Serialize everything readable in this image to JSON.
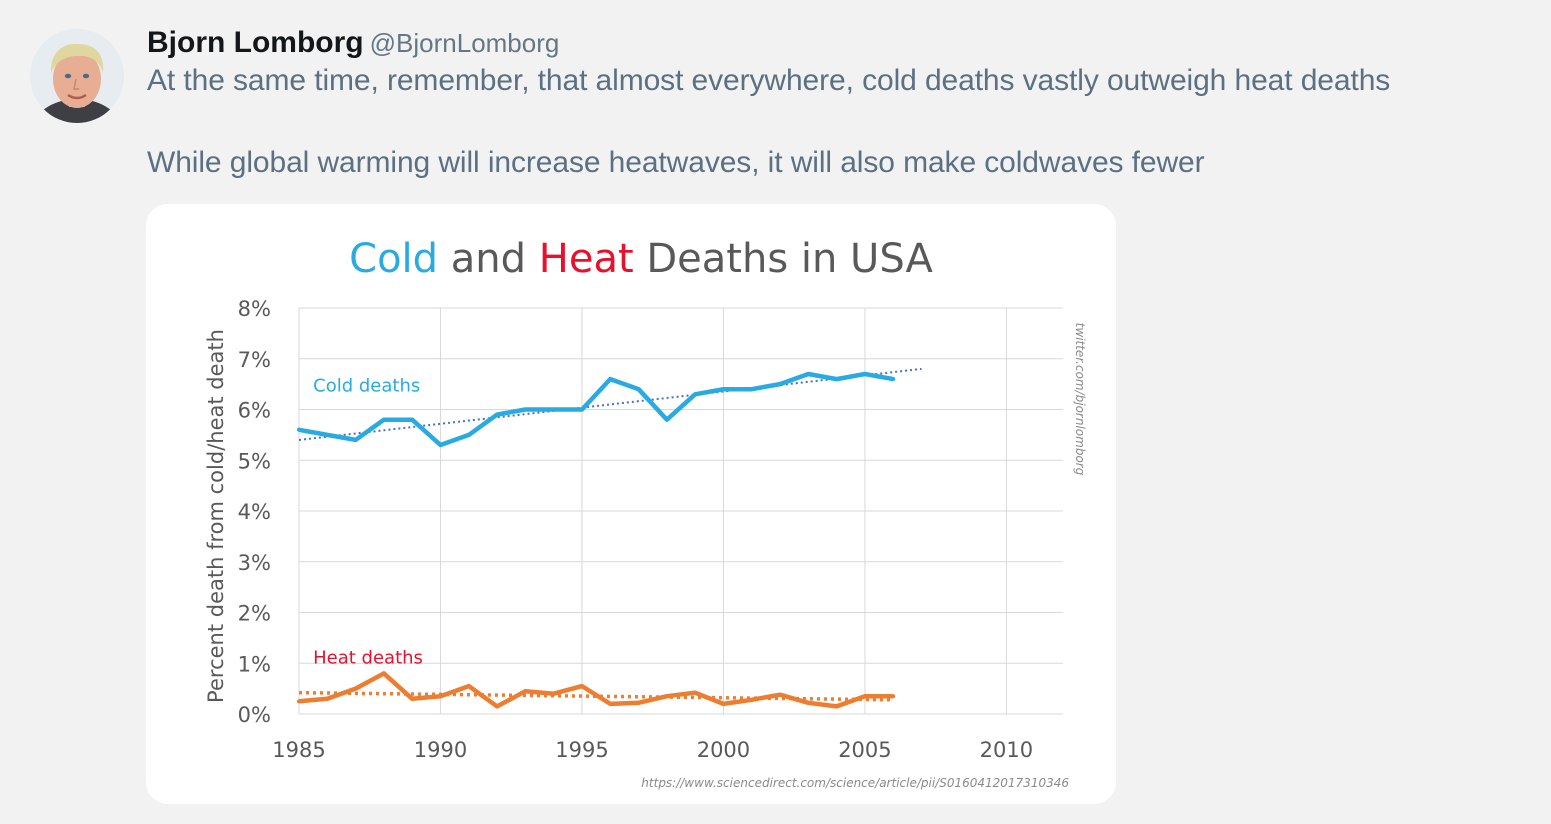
{
  "tweet": {
    "author_name": "Bjorn Lomborg",
    "author_handle": "@BjornLomborg",
    "line1": "At the same time, remember, that almost everywhere, cold deaths vastly outweigh heat deaths",
    "line2": "While global warming will increase heatwaves, it will also make coldwaves fewer"
  },
  "colors": {
    "cold": "#29abe2",
    "heat": "#ed7d31",
    "heat_label": "#e8112d",
    "title_dark": "#595959",
    "grid": "#d9d9d9",
    "trend_cold": "#4472c4"
  },
  "chart_data": {
    "type": "line",
    "title_parts": [
      {
        "text": "Cold",
        "color_key": "cold"
      },
      {
        "text": " and ",
        "color_key": "title_dark"
      },
      {
        "text": "Heat",
        "color_key": "heat_label"
      },
      {
        "text": " Deaths in USA",
        "color_key": "title_dark"
      }
    ],
    "ylabel": "Percent death from cold/heat death",
    "xlabel": "",
    "xlim": [
      1985,
      2012
    ],
    "ylim": [
      0,
      8
    ],
    "x_ticks": [
      1985,
      1990,
      1995,
      2000,
      2005,
      2010
    ],
    "y_ticks": [
      0,
      1,
      2,
      3,
      4,
      5,
      6,
      7,
      8
    ],
    "y_tick_labels": [
      "0%",
      "1%",
      "2%",
      "3%",
      "4%",
      "5%",
      "6%",
      "7%",
      "8%"
    ],
    "watermark": "twitter.com/bjornlomborg",
    "source": "https://www.sciencedirect.com/science/article/pii/S0160412017310346",
    "series": [
      {
        "name": "Cold deaths",
        "color_key": "cold",
        "x": [
          1985,
          1986,
          1987,
          1988,
          1989,
          1990,
          1991,
          1992,
          1993,
          1994,
          1995,
          1996,
          1997,
          1998,
          1999,
          2000,
          2001,
          2002,
          2003,
          2004,
          2005,
          2006
        ],
        "values": [
          5.6,
          5.5,
          5.4,
          5.8,
          5.8,
          5.3,
          5.5,
          5.9,
          6.0,
          6.0,
          6.0,
          6.6,
          6.4,
          5.8,
          6.3,
          6.4,
          6.4,
          6.5,
          6.7,
          6.6,
          6.7,
          6.6
        ],
        "trend": [
          5.4,
          6.8
        ],
        "trend_x": [
          1985,
          2007
        ]
      },
      {
        "name": "Heat deaths",
        "color_key": "heat",
        "label_color_key": "heat_label",
        "x": [
          1985,
          1986,
          1987,
          1988,
          1989,
          1990,
          1991,
          1992,
          1993,
          1994,
          1995,
          1996,
          1997,
          1998,
          1999,
          2000,
          2001,
          2002,
          2003,
          2004,
          2005,
          2006
        ],
        "values": [
          0.25,
          0.3,
          0.5,
          0.8,
          0.3,
          0.35,
          0.55,
          0.15,
          0.45,
          0.4,
          0.55,
          0.2,
          0.22,
          0.35,
          0.42,
          0.2,
          0.28,
          0.38,
          0.22,
          0.15,
          0.35,
          0.35
        ],
        "trend": [
          0.42,
          0.28
        ],
        "trend_x": [
          1985,
          2006
        ]
      }
    ]
  }
}
